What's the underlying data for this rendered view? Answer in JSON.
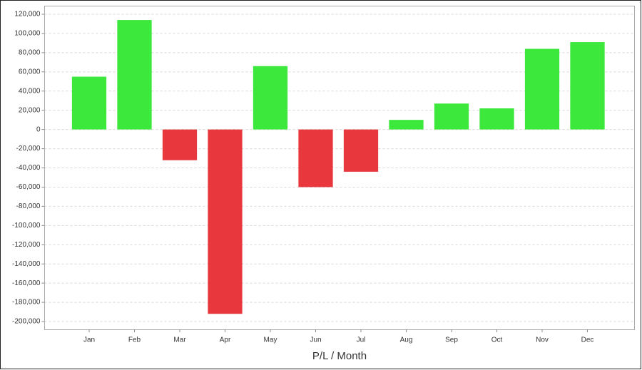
{
  "chart_data": {
    "type": "bar",
    "x_label": "P/L / Month",
    "categories": [
      "Jan",
      "Feb",
      "Mar",
      "Apr",
      "May",
      "Jun",
      "Jul",
      "Aug",
      "Sep",
      "Oct",
      "Nov",
      "Dec"
    ],
    "values": [
      55000,
      114000,
      -32000,
      -192000,
      66000,
      -60000,
      -44000,
      10000,
      27000,
      22000,
      84000,
      91000
    ],
    "positive_color": "#3de83d",
    "negative_color": "#e8383d",
    "ylim": [
      -200000,
      120000
    ],
    "yticks": [
      {
        "value": -200000,
        "label": "-200,000"
      },
      {
        "value": -180000,
        "label": "-180,000"
      },
      {
        "value": -160000,
        "label": "-160,000"
      },
      {
        "value": -140000,
        "label": "-140,000"
      },
      {
        "value": -120000,
        "label": "-120,000"
      },
      {
        "value": -100000,
        "label": "-100,000"
      },
      {
        "value": -80000,
        "label": "-80,000"
      },
      {
        "value": -60000,
        "label": "-60,000"
      },
      {
        "value": -40000,
        "label": "-40,000"
      },
      {
        "value": -20000,
        "label": "-20,000"
      },
      0,
      {
        "value": 20000,
        "label": "20,000"
      },
      {
        "value": 40000,
        "label": "40,000"
      },
      {
        "value": 60000,
        "label": "60,000"
      },
      {
        "value": 80000,
        "label": "80,000"
      },
      {
        "value": 100000,
        "label": "100,000"
      },
      {
        "value": 120000,
        "label": "120,000"
      }
    ],
    "grid": true
  }
}
